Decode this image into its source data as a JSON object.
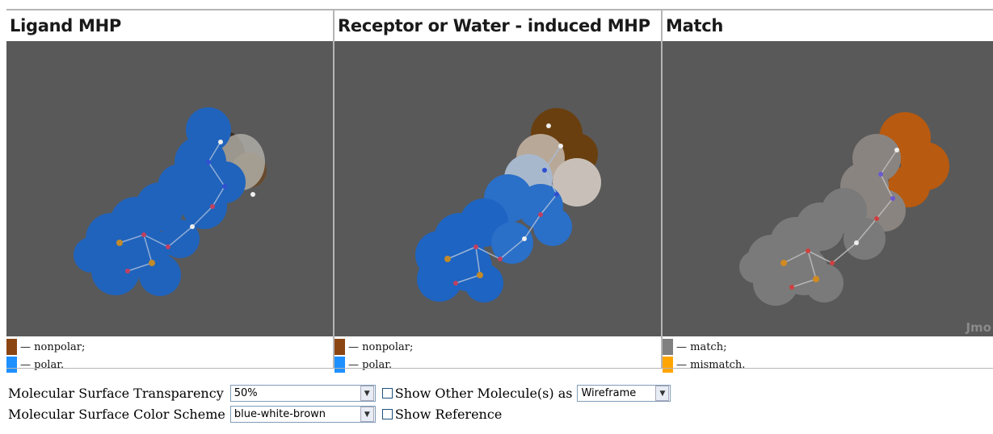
{
  "panels": [
    {
      "title": "Ligand MHP",
      "legend": [
        {
          "label": "— nonpolar;",
          "color": "#8b4513"
        },
        {
          "label": "— polar.",
          "color": "#1e90ff"
        }
      ]
    },
    {
      "title": "Receptor or Water - induced MHP",
      "legend": [
        {
          "label": "— nonpolar;",
          "color": "#8b4513"
        },
        {
          "label": "— polar.",
          "color": "#1e90ff"
        }
      ]
    },
    {
      "title": "Match",
      "viewer_watermark": "Jmo",
      "legend": [
        {
          "label": "— match;",
          "color": "#808080"
        },
        {
          "label": "— mismatch.",
          "color": "#ffa500"
        }
      ]
    }
  ],
  "controls": {
    "transparency_label": "Molecular Surface Transparency",
    "transparency_value": "50%",
    "show_other_label": "Show Other Molecule(s) as",
    "show_other_value": "Wireframe",
    "color_scheme_label": "Molecular Surface Color Scheme",
    "color_scheme_value": "blue-white-brown",
    "show_reference_label": "Show Reference"
  },
  "colors": {
    "viewer_bg": "#595959",
    "polar": "#1e6fd0",
    "nonpolar": "#7a4a12",
    "match": "#8a8a8a",
    "mismatch": "#c8600f"
  }
}
